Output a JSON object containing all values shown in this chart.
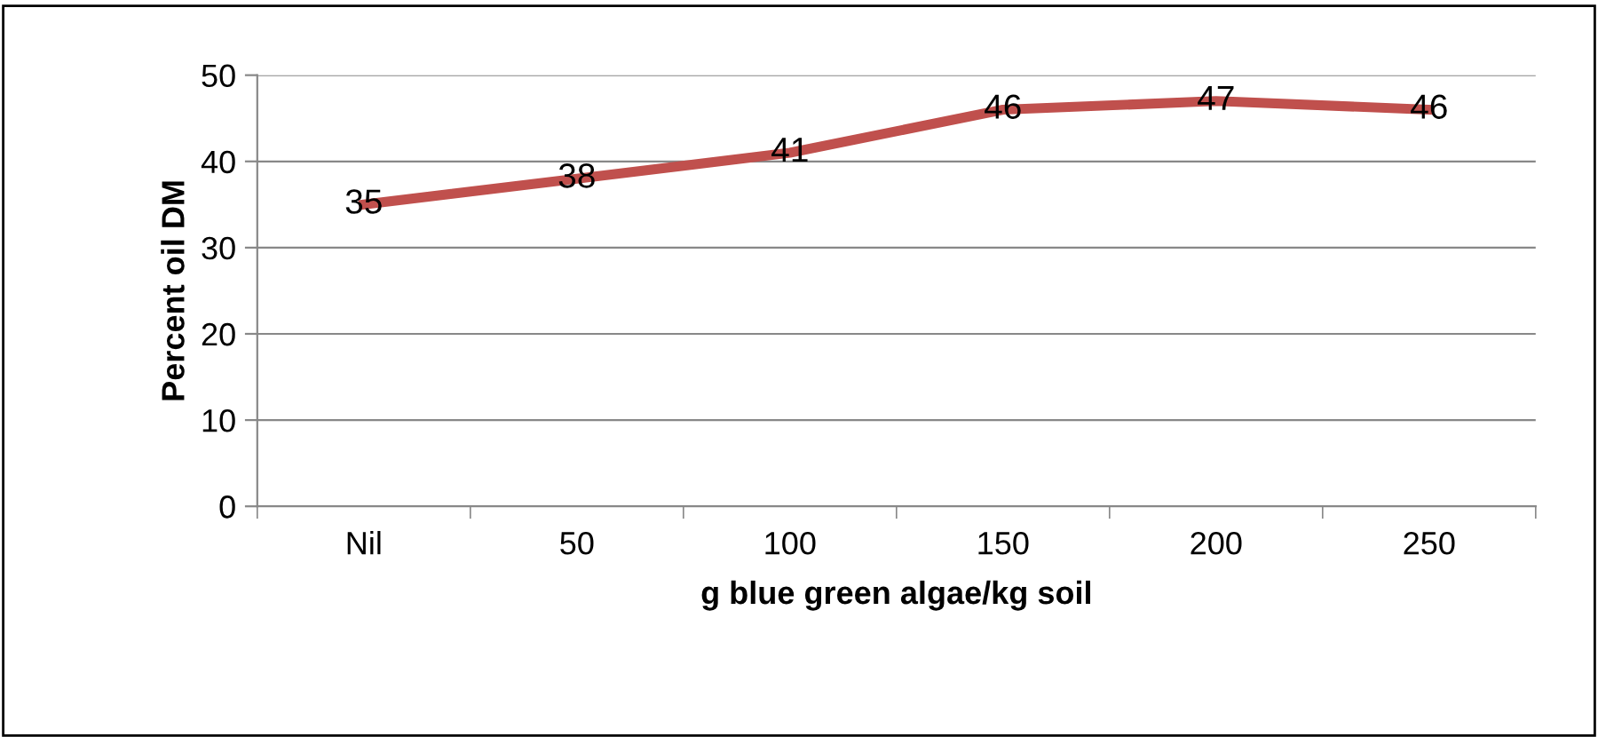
{
  "chart_data": {
    "type": "line",
    "xlabel": "g blue green algae/kg soil",
    "ylabel": "Percent oil DM",
    "categories": [
      "Nil",
      "50",
      "100",
      "150",
      "200",
      "250"
    ],
    "series": [
      {
        "color": "#c0504d",
        "values": [
          35,
          38,
          41,
          46,
          47,
          46
        ]
      }
    ],
    "ylim": [
      0,
      50
    ],
    "yticks": [
      0,
      10,
      20,
      30,
      40,
      50
    ],
    "grid": "y",
    "data_labels": true,
    "legend": false,
    "marker": "none",
    "line_style": "solid"
  }
}
